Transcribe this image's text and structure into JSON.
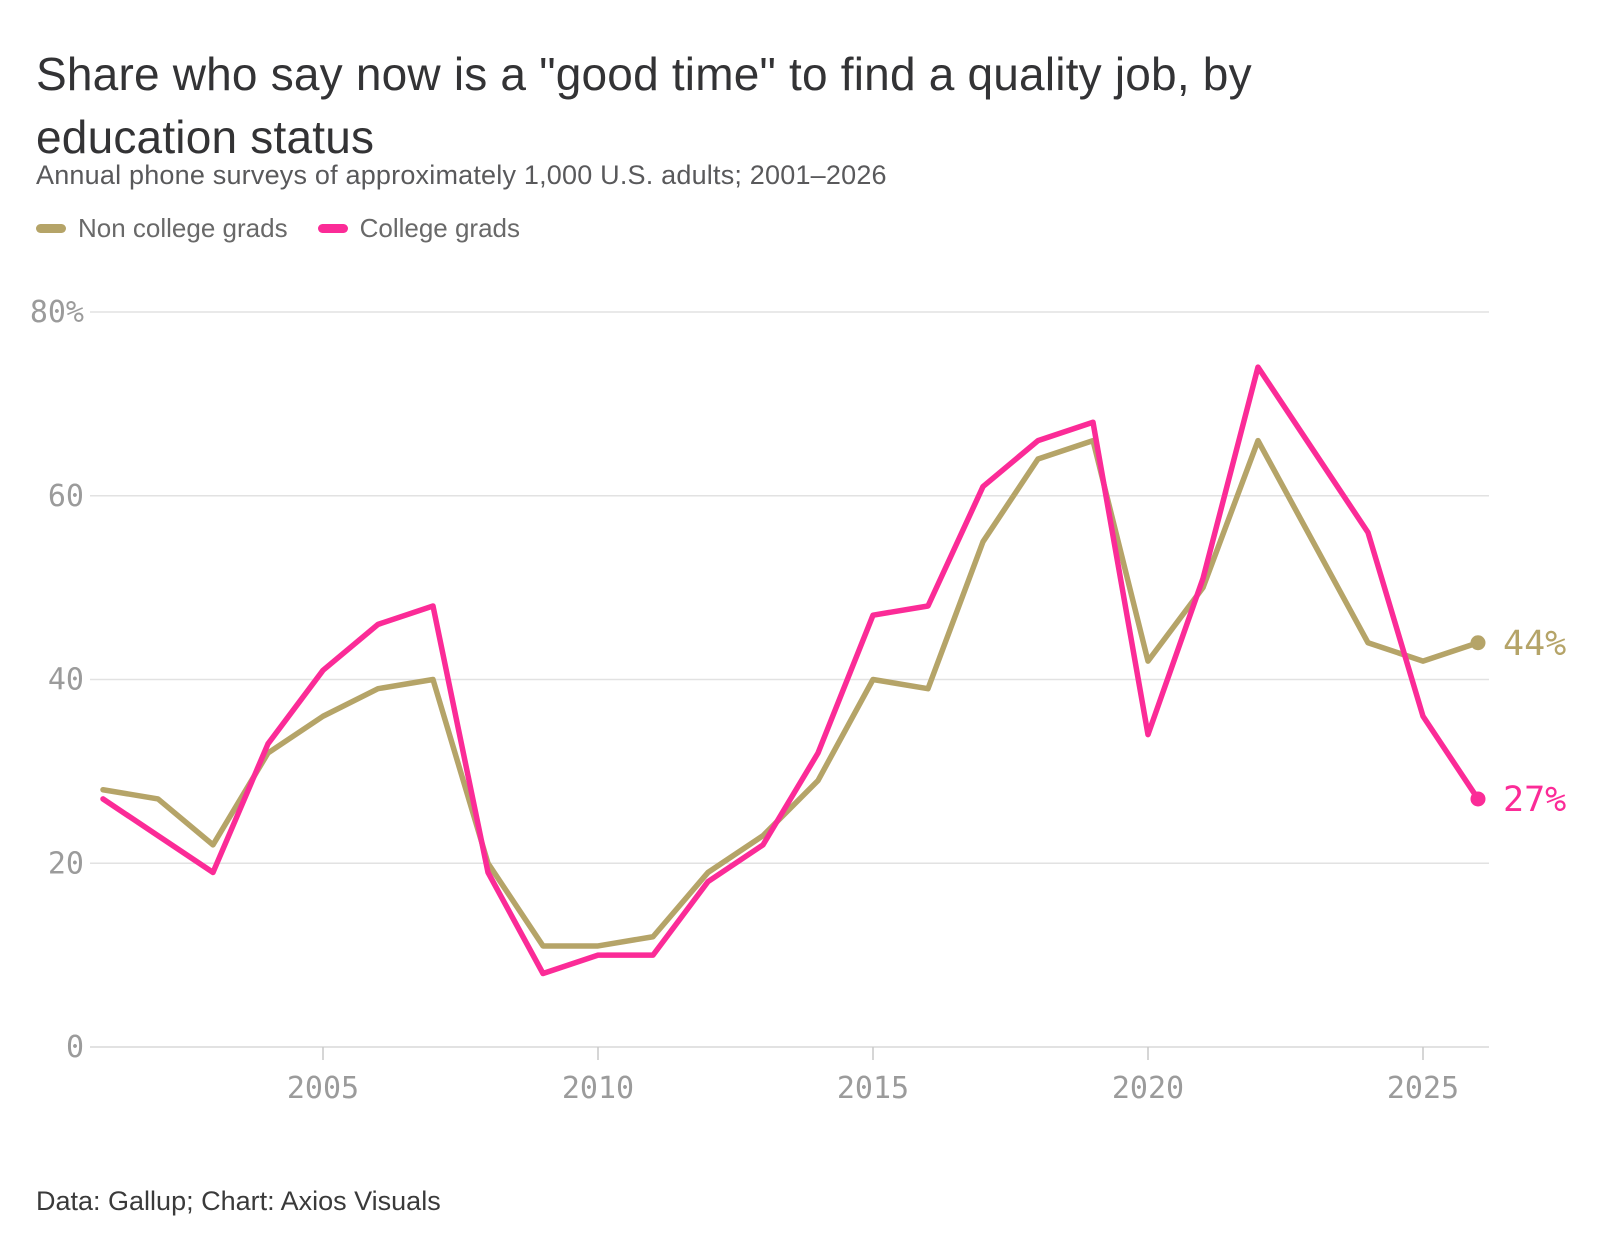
{
  "chart_data": {
    "type": "line",
    "title": "Share who say now is a \"good time\" to find a quality job, by education status",
    "subtitle": "Annual phone surveys of approximately 1,000 U.S. adults; 2001–2026",
    "source": "Data: Gallup; Chart: Axios Visuals",
    "x": [
      2001,
      2002,
      2003,
      2004,
      2005,
      2006,
      2007,
      2008,
      2009,
      2010,
      2011,
      2012,
      2013,
      2014,
      2015,
      2016,
      2017,
      2018,
      2019,
      2020,
      2021,
      2022,
      2023,
      2024,
      2025,
      2026
    ],
    "series": [
      {
        "name": "Non college grads",
        "color": "#b5a468",
        "values": [
          28,
          27,
          22,
          32,
          36,
          39,
          40,
          20,
          11,
          11,
          12,
          19,
          23,
          29,
          40,
          39,
          55,
          64,
          66,
          42,
          50,
          66,
          55,
          44,
          42,
          44
        ],
        "end_label": "44%"
      },
      {
        "name": "College grads",
        "color": "#fb2b97",
        "values": [
          27,
          23,
          19,
          33,
          41,
          46,
          48,
          19,
          8,
          10,
          10,
          18,
          22,
          32,
          47,
          48,
          61,
          66,
          68,
          34,
          51,
          74,
          65,
          56,
          36,
          27
        ],
        "end_label": "27%"
      }
    ],
    "xlim": [
      2001,
      2026
    ],
    "ylim": [
      0,
      80
    ],
    "yticks": [
      0,
      20,
      40,
      60,
      80
    ],
    "ytick_labels": [
      "0",
      "20",
      "40",
      "60",
      "80%"
    ],
    "xticks": [
      2005,
      2010,
      2015,
      2020,
      2025
    ],
    "xtick_labels": [
      "2005",
      "2010",
      "2015",
      "2020",
      "2025"
    ],
    "grid": "horizontal gridlines on",
    "legend_position": "top-left"
  },
  "colors": {
    "gridline": "#e2e2e2",
    "axis_line": "#d8d8d8",
    "tick_mark": "#c9c9c9",
    "tick_label": "#9b9b9b"
  }
}
